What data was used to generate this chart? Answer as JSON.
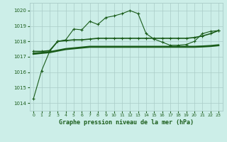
{
  "title": "Graphe pression niveau de la mer (hPa)",
  "bg_color": "#cceee8",
  "grid_color": "#aaccc8",
  "line_color": "#1a5c1a",
  "xlim": [
    -0.5,
    23.5
  ],
  "ylim": [
    1013.5,
    1020.5
  ],
  "yticks": [
    1014,
    1015,
    1016,
    1017,
    1018,
    1019,
    1020
  ],
  "xticks": [
    0,
    1,
    2,
    3,
    4,
    5,
    6,
    7,
    8,
    9,
    10,
    11,
    12,
    13,
    14,
    15,
    16,
    17,
    18,
    19,
    20,
    21,
    22,
    23
  ],
  "hours": [
    0,
    1,
    2,
    3,
    4,
    5,
    6,
    7,
    8,
    9,
    10,
    11,
    12,
    13,
    14,
    15,
    16,
    17,
    18,
    19,
    20,
    21,
    22,
    23
  ],
  "line1_y": [
    1014.3,
    1016.1,
    1017.35,
    1018.0,
    1018.1,
    1018.8,
    1018.75,
    1019.3,
    1019.1,
    1019.55,
    1019.65,
    1019.8,
    1020.0,
    1019.8,
    1018.5,
    1018.15,
    1017.95,
    1017.75,
    1017.75,
    1017.8,
    1018.0,
    1018.5,
    1018.65,
    1018.7
  ],
  "line2_y": [
    1017.35,
    1017.35,
    1017.4,
    1018.0,
    1018.05,
    1018.1,
    1018.1,
    1018.15,
    1018.2,
    1018.2,
    1018.2,
    1018.2,
    1018.2,
    1018.2,
    1018.2,
    1018.2,
    1018.2,
    1018.2,
    1018.2,
    1018.2,
    1018.25,
    1018.35,
    1018.5,
    1018.7
  ],
  "line3_y": [
    1017.2,
    1017.25,
    1017.3,
    1017.4,
    1017.5,
    1017.55,
    1017.6,
    1017.65,
    1017.65,
    1017.65,
    1017.65,
    1017.65,
    1017.65,
    1017.65,
    1017.65,
    1017.65,
    1017.65,
    1017.65,
    1017.65,
    1017.65,
    1017.65,
    1017.67,
    1017.7,
    1017.75
  ]
}
